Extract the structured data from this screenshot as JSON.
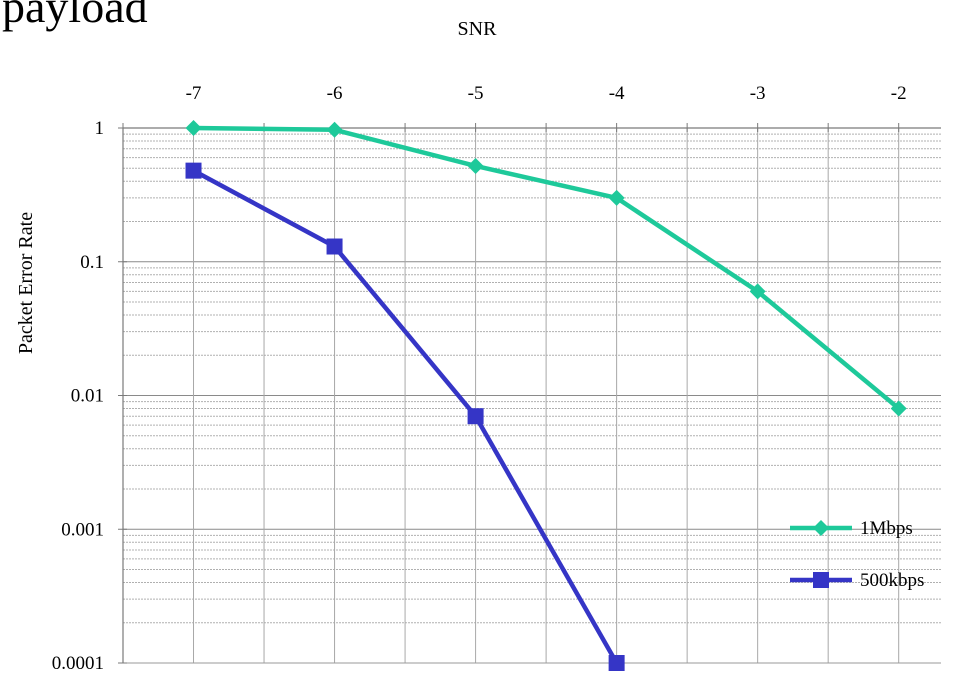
{
  "chart_data": {
    "type": "line",
    "title": "payload",
    "xlabel": "SNR",
    "ylabel": "Packet Error Rate",
    "x": [
      -7,
      -6,
      -5,
      -4,
      -3,
      -2
    ],
    "x_tick_labels": [
      "-7",
      "-6",
      "-5",
      "-4",
      "-3",
      "-2"
    ],
    "y_scale": "log",
    "ylim": [
      0.0001,
      1
    ],
    "y_tick_values": [
      1,
      0.1,
      0.01,
      0.001,
      0.0001
    ],
    "y_tick_labels": [
      "1",
      "0.1",
      "0.01",
      "0.001",
      "0.0001"
    ],
    "x_axis_position": "top",
    "grid": true,
    "legend_position": "bottom-right",
    "series": [
      {
        "name": "1Mbps",
        "color": "#1ec99a",
        "marker": "diamond",
        "x": [
          -7,
          -6,
          -5,
          -4,
          -3,
          -2
        ],
        "values": [
          1.0,
          0.97,
          0.52,
          0.3,
          0.06,
          0.008
        ]
      },
      {
        "name": "500kbps",
        "color": "#3535c6",
        "marker": "square",
        "x": [
          -7,
          -6,
          -5,
          -4
        ],
        "values": [
          0.48,
          0.13,
          0.007,
          0.0001
        ]
      }
    ]
  }
}
